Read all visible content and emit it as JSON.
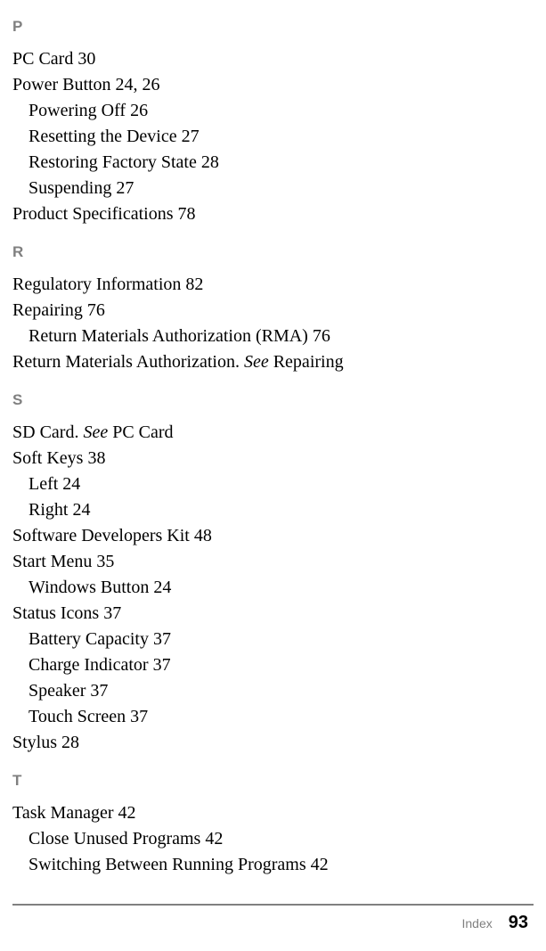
{
  "sections": {
    "P": {
      "letter": "P",
      "entries": [
        {
          "type": "main",
          "text": "PC Card  30"
        },
        {
          "type": "main",
          "text": "Power Button  24, 26"
        },
        {
          "type": "sub",
          "text": "Powering Off  26"
        },
        {
          "type": "sub",
          "text": "Resetting the Device  27"
        },
        {
          "type": "sub",
          "text": "Restoring Factory State  28"
        },
        {
          "type": "sub",
          "text": "Suspending  27"
        },
        {
          "type": "main",
          "text": "Product Specifications  78"
        }
      ]
    },
    "R": {
      "letter": "R",
      "entries": [
        {
          "type": "main",
          "text": "Regulatory Information  82"
        },
        {
          "type": "main",
          "text": "Repairing  76"
        },
        {
          "type": "sub",
          "text": "Return Materials Authorization (RMA)  76"
        },
        {
          "type": "main",
          "prefix": "Return Materials Authorization. ",
          "italic": "See",
          "suffix": " Repairing"
        }
      ]
    },
    "S": {
      "letter": "S",
      "entries": [
        {
          "type": "main",
          "prefix": "SD Card. ",
          "italic": "See",
          "suffix": " PC Card"
        },
        {
          "type": "main",
          "text": "Soft Keys  38"
        },
        {
          "type": "sub",
          "text": "Left  24"
        },
        {
          "type": "sub",
          "text": "Right  24"
        },
        {
          "type": "main",
          "text": "Software Developers Kit  48"
        },
        {
          "type": "main",
          "text": "Start Menu  35"
        },
        {
          "type": "sub",
          "text": "Windows Button  24"
        },
        {
          "type": "main",
          "text": "Status Icons  37"
        },
        {
          "type": "sub",
          "text": "Battery Capacity  37"
        },
        {
          "type": "sub",
          "text": "Charge Indicator  37"
        },
        {
          "type": "sub",
          "text": "Speaker  37"
        },
        {
          "type": "sub",
          "text": "Touch Screen  37"
        },
        {
          "type": "main",
          "text": "Stylus  28"
        }
      ]
    },
    "T": {
      "letter": "T",
      "entries": [
        {
          "type": "main",
          "text": "Task Manager  42"
        },
        {
          "type": "sub",
          "text": "Close Unused Programs  42"
        },
        {
          "type": "sub",
          "text": "Switching Between Running Programs  42"
        }
      ]
    }
  },
  "footer": {
    "label": "Index",
    "page": "93"
  }
}
